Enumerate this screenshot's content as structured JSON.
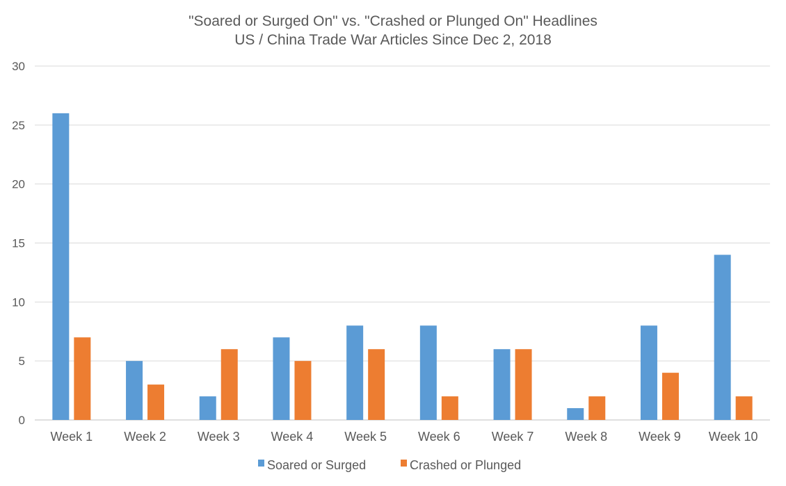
{
  "chart_data": {
    "type": "bar",
    "title": "\"Soared or Surged On\" vs. \"Crashed or Plunged On\" Headlines",
    "subtitle": "US / China Trade War Articles Since Dec 2, 2018",
    "xlabel": "",
    "ylabel": "",
    "categories": [
      "Week 1",
      "Week 2",
      "Week 3",
      "Week 4",
      "Week 5",
      "Week 6",
      "Week 7",
      "Week 8",
      "Week 9",
      "Week 10"
    ],
    "series": [
      {
        "name": "Soared or Surged",
        "color": "#5b9bd5",
        "values": [
          26,
          5,
          2,
          7,
          8,
          8,
          6,
          1,
          8,
          14
        ]
      },
      {
        "name": "Crashed or Plunged",
        "color": "#ed7d31",
        "values": [
          7,
          3,
          6,
          5,
          6,
          2,
          6,
          2,
          4,
          2
        ]
      }
    ],
    "ylim": [
      0,
      30
    ],
    "yticks": [
      "0",
      "5",
      "10",
      "15",
      "20",
      "25",
      "30"
    ],
    "grid": true,
    "legend_position": "bottom"
  }
}
